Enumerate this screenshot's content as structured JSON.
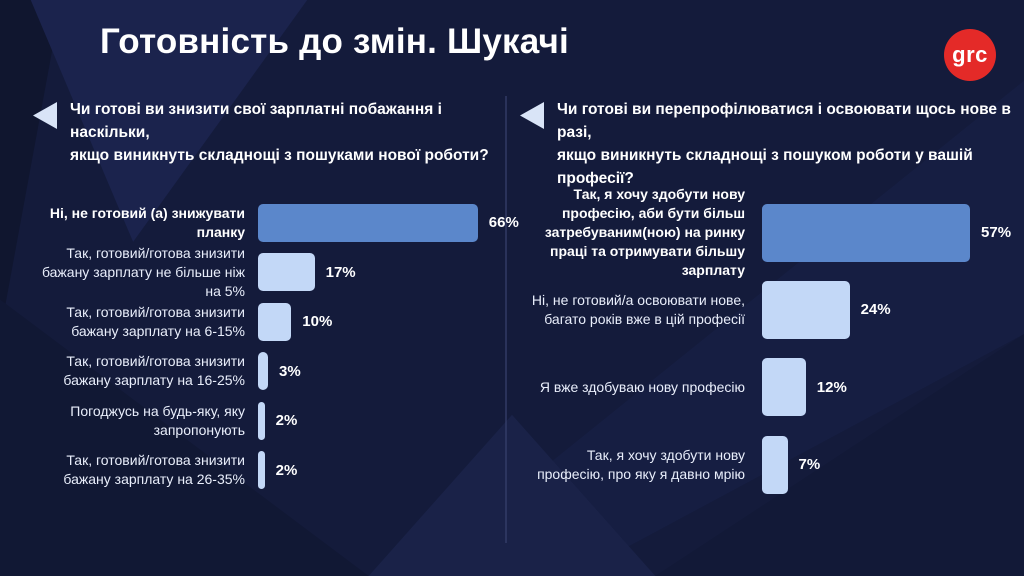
{
  "title": "Готовність до змін. Шукачі",
  "logo": {
    "text": "grc"
  },
  "colors": {
    "background": "#141b3b",
    "highlight_bar": "#5b87cb",
    "bar": "#c3d8f7",
    "logo_red": "#e42a28",
    "arrow": "#d9e4f7"
  },
  "chart_data": [
    {
      "type": "bar",
      "orientation": "horizontal",
      "question": "Чи готові ви знизити свої зарплатні побажання і наскільки,\nякщо  виникнуть складнощі з пошуками нової роботи?",
      "categories": [
        "Ні, не готовий (а) знижувати планку",
        "Так, готовий/готова знизити бажану зарплату не більше ніж на 5%",
        "Так, готовий/готова знизити бажану зарплату на 6-15%",
        "Так, готовий/готова знизити бажану зарплату на 16-25%",
        "Погоджусь на будь-яку, яку запропонують",
        "Так, готовий/готова знизити бажану зарплату на 26-35%"
      ],
      "values": [
        66,
        17,
        10,
        3,
        2,
        2
      ],
      "value_labels": [
        "66%",
        "17%",
        "10%",
        "3%",
        "2%",
        "2%"
      ],
      "highlight_index": 0,
      "unit": "%",
      "axes_shown": false,
      "legend": false
    },
    {
      "type": "bar",
      "orientation": "horizontal",
      "question": "Чи готові ви перепрофілюватися і освоювати щось нове в разі,\nякщо виникнуть складнощі з пошуком роботи у вашій професії?",
      "categories": [
        "Так, я хочу здобути нову професію, аби бути більш затребуваним(ною) на ринку праці та отримувати більшу зарплату",
        "Ні, не готовий/а освоювати нове, багато років вже в цій професії",
        "Я вже здобуваю нову професію",
        "Так, я хочу здобути нову професію, про яку я давно мрію"
      ],
      "values": [
        57,
        24,
        12,
        7
      ],
      "value_labels": [
        "57%",
        "24%",
        "12%",
        "7%"
      ],
      "highlight_index": 0,
      "unit": "%",
      "axes_shown": false,
      "legend": false
    }
  ]
}
